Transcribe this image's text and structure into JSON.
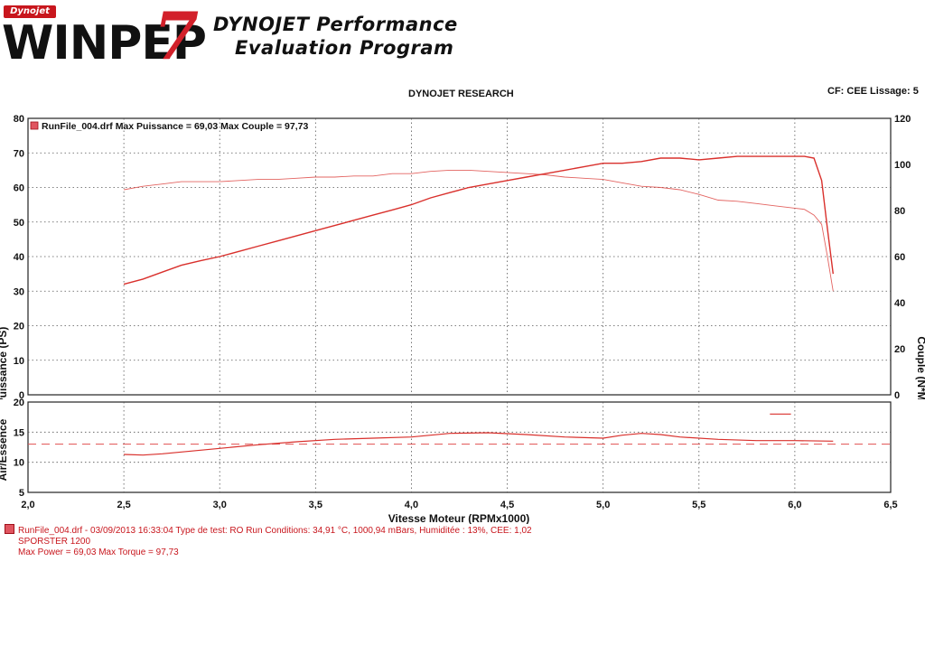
{
  "header": {
    "logo_badge": "Dynojet",
    "logo_word": "WINPEP",
    "logo_number": "7",
    "title_line1": "DYNOJET Performance",
    "title_line2": "Evaluation Program",
    "research": "DYNOJET RESEARCH",
    "cf_text": "CF: CEE  Lissage: 5"
  },
  "legend": {
    "text": "RunFile_004.drf Max Puissance = 69,03    Max Couple = 97,73"
  },
  "footer": {
    "line1": "RunFile_004.drf - 03/09/2013 16:33:04  Type de test: RO  Run Conditions: 34,91 °C, 1000,94 mBars,  Humiditée : 13%, CEE: 1,02",
    "line2": "SPORSTER  1200",
    "line3": "Max Power = 69,03   Max Torque = 97,73"
  },
  "colors": {
    "curve": "#d9302c",
    "dashed": "#e05050",
    "legend_swatch": "#e05560"
  },
  "chart_data": [
    {
      "type": "line",
      "xlabel": "Vitesse Moteur (RPMx1000)",
      "ylabel": "Puissance (PS)",
      "y2label": "Couple (N*M)",
      "xlim": [
        2.0,
        6.5
      ],
      "ylim": [
        0,
        80
      ],
      "y2lim": [
        0,
        120
      ],
      "x_ticks": [
        "2,0",
        "2,5",
        "3,0",
        "3,5",
        "4,0",
        "4,5",
        "5,0",
        "5,5",
        "6,0",
        "6,5"
      ],
      "y_ticks": [
        0,
        10,
        20,
        30,
        40,
        50,
        60,
        70,
        80
      ],
      "y2_ticks": [
        0,
        20,
        40,
        60,
        80,
        100,
        120
      ],
      "grid": true,
      "series": [
        {
          "axis": "left",
          "x": [
            2.5,
            2.6,
            2.7,
            2.8,
            2.9,
            3.0,
            3.1,
            3.2,
            3.3,
            3.4,
            3.5,
            3.6,
            3.7,
            3.8,
            3.9,
            4.0,
            4.1,
            4.2,
            4.3,
            4.4,
            4.5,
            4.6,
            4.7,
            4.8,
            4.9,
            5.0,
            5.1,
            5.2,
            5.3,
            5.4,
            5.5,
            5.6,
            5.7,
            5.8,
            5.9,
            6.0,
            6.05,
            6.1,
            6.14,
            6.17,
            6.2
          ],
          "y": [
            32,
            33.5,
            35.5,
            37.5,
            38.8,
            40,
            41.5,
            43,
            44.5,
            46,
            47.5,
            49,
            50.5,
            52,
            53.5,
            55,
            57,
            58.5,
            60,
            61,
            62,
            63,
            64,
            65,
            66,
            67,
            67,
            67.5,
            68.5,
            68.5,
            68,
            68.5,
            69,
            69,
            69,
            69,
            69,
            68.5,
            62,
            48,
            35
          ]
        },
        {
          "axis": "right",
          "x": [
            2.5,
            2.6,
            2.7,
            2.8,
            2.9,
            3.0,
            3.1,
            3.2,
            3.3,
            3.4,
            3.5,
            3.6,
            3.7,
            3.8,
            3.9,
            4.0,
            4.1,
            4.2,
            4.3,
            4.4,
            4.5,
            4.6,
            4.7,
            4.8,
            4.9,
            5.0,
            5.1,
            5.2,
            5.3,
            5.4,
            5.5,
            5.6,
            5.7,
            5.8,
            5.9,
            6.0,
            6.05,
            6.1,
            6.14,
            6.17,
            6.2
          ],
          "y": [
            89,
            90.5,
            91.5,
            92.5,
            92.5,
            92.5,
            93,
            93.5,
            93.5,
            94,
            94.5,
            94.5,
            95,
            95,
            96,
            96,
            97,
            97.5,
            97.5,
            97,
            96.5,
            96,
            95.5,
            94.5,
            94,
            93.5,
            92,
            90.5,
            90,
            89,
            87,
            84.5,
            84,
            83,
            82,
            81,
            80.5,
            78,
            74,
            60,
            45
          ]
        }
      ]
    },
    {
      "type": "line",
      "ylabel": "Air/Essence",
      "xlim": [
        2.0,
        6.5
      ],
      "ylim": [
        5,
        20
      ],
      "y_ticks": [
        5,
        10,
        15,
        20
      ],
      "grid": true,
      "reference_line": 13,
      "series": [
        {
          "x": [
            2.5,
            2.6,
            2.7,
            2.8,
            2.9,
            3.0,
            3.2,
            3.4,
            3.6,
            3.8,
            4.0,
            4.2,
            4.4,
            4.6,
            4.8,
            5.0,
            5.1,
            5.2,
            5.3,
            5.4,
            5.6,
            5.8,
            6.0,
            6.2
          ],
          "y": [
            11.3,
            11.2,
            11.4,
            11.7,
            12.0,
            12.3,
            12.9,
            13.4,
            13.8,
            14.0,
            14.2,
            14.8,
            14.9,
            14.6,
            14.2,
            14.0,
            14.5,
            14.8,
            14.6,
            14.2,
            13.8,
            13.6,
            13.6,
            13.5
          ]
        },
        {
          "x": [
            5.87,
            5.98
          ],
          "y": [
            18.0,
            18.0
          ]
        }
      ]
    }
  ]
}
